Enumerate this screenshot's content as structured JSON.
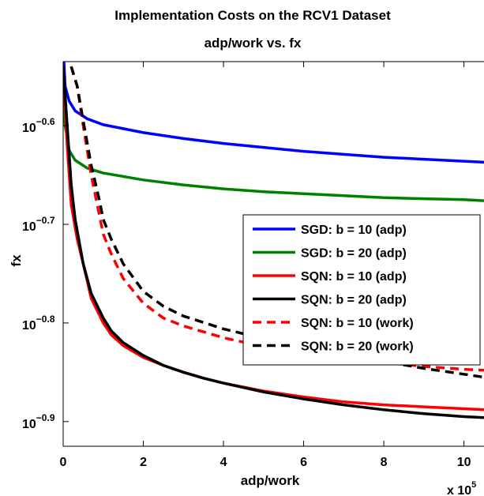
{
  "chart_data": {
    "type": "line",
    "title": "Implementation Costs on the RCV1 Dataset",
    "subtitle": "adp/work vs. fx",
    "xlabel": "adp/work",
    "ylabel": "fx",
    "x_multiplier": "x 10",
    "x_multiplier_exp": "5",
    "xlim": [
      0,
      10.5
    ],
    "ylim": [
      -0.925,
      -0.535
    ],
    "yscale": "log10",
    "x_ticks": [
      "0",
      "2",
      "4",
      "6",
      "8",
      "10"
    ],
    "y_ticks": [
      {
        "value": -0.6,
        "base": "10",
        "exp": "−0.6"
      },
      {
        "value": -0.7,
        "base": "10",
        "exp": "−0.7"
      },
      {
        "value": -0.8,
        "base": "10",
        "exp": "−0.8"
      },
      {
        "value": -0.9,
        "base": "10",
        "exp": "−0.9"
      }
    ],
    "grid": false,
    "legend_position": "center-right",
    "series": [
      {
        "name": "SGD: b = 10 (adp)",
        "color": "#0000ff",
        "dash": "solid",
        "x": [
          0.0,
          0.05,
          0.15,
          0.3,
          0.6,
          1,
          2,
          3,
          4,
          5,
          6,
          7,
          8,
          9,
          10,
          10.5
        ],
        "y": [
          -0.52,
          -0.56,
          -0.575,
          -0.585,
          -0.593,
          -0.599,
          -0.607,
          -0.613,
          -0.618,
          -0.622,
          -0.626,
          -0.629,
          -0.632,
          -0.634,
          -0.636,
          -0.637
        ]
      },
      {
        "name": "SGD: b = 20 (adp)",
        "color": "#008000",
        "dash": "solid",
        "x": [
          0.0,
          0.05,
          0.15,
          0.3,
          0.6,
          1,
          2,
          3,
          4,
          5,
          6,
          7,
          8,
          9,
          10,
          10.5
        ],
        "y": [
          -0.56,
          -0.6,
          -0.625,
          -0.635,
          -0.643,
          -0.648,
          -0.655,
          -0.66,
          -0.664,
          -0.667,
          -0.669,
          -0.671,
          -0.673,
          -0.674,
          -0.675,
          -0.676
        ]
      },
      {
        "name": "SQN: b = 10 (adp)",
        "color": "#ff0000",
        "dash": "solid",
        "x": [
          0.0,
          0.1,
          0.2,
          0.35,
          0.5,
          0.7,
          1,
          1.2,
          1.5,
          2,
          2.5,
          3,
          3.5,
          4,
          5,
          6,
          7,
          8,
          9,
          10,
          10.5
        ],
        "y": [
          -0.54,
          -0.62,
          -0.68,
          -0.715,
          -0.74,
          -0.775,
          -0.8,
          -0.812,
          -0.823,
          -0.835,
          -0.843,
          -0.85,
          -0.856,
          -0.861,
          -0.869,
          -0.875,
          -0.88,
          -0.883,
          -0.885,
          -0.887,
          -0.888
        ]
      },
      {
        "name": "SQN: b = 20 (adp)",
        "color": "#000000",
        "dash": "solid",
        "x": [
          0.0,
          0.1,
          0.2,
          0.3,
          0.5,
          0.7,
          1,
          1.2,
          1.5,
          2,
          2.5,
          3,
          3.5,
          4,
          5,
          6,
          7,
          8,
          9,
          10,
          10.5
        ],
        "y": [
          -0.54,
          -0.6,
          -0.66,
          -0.695,
          -0.74,
          -0.77,
          -0.795,
          -0.808,
          -0.82,
          -0.833,
          -0.843,
          -0.85,
          -0.856,
          -0.861,
          -0.87,
          -0.877,
          -0.883,
          -0.888,
          -0.892,
          -0.895,
          -0.896
        ]
      },
      {
        "name": "SQN: b = 10 (work)",
        "color": "#ff0000",
        "dash": "dashed",
        "x": [
          0.2,
          0.35,
          0.5,
          0.7,
          0.9,
          1.0,
          1.2,
          1.5,
          2,
          2.5,
          3,
          4,
          5,
          6,
          7,
          8,
          9,
          10,
          10.5
        ],
        "y": [
          -0.54,
          -0.56,
          -0.6,
          -0.65,
          -0.69,
          -0.71,
          -0.73,
          -0.755,
          -0.78,
          -0.795,
          -0.803,
          -0.815,
          -0.824,
          -0.83,
          -0.835,
          -0.84,
          -0.844,
          -0.847,
          -0.848
        ]
      },
      {
        "name": "SQN: b = 20 (work)",
        "color": "#000000",
        "dash": "dashed",
        "x": [
          0.2,
          0.35,
          0.5,
          0.7,
          0.9,
          1.0,
          1.2,
          1.5,
          2,
          2.5,
          3,
          4,
          5,
          6,
          7,
          8,
          9,
          10,
          10.5
        ],
        "y": [
          -0.54,
          -0.56,
          -0.595,
          -0.64,
          -0.675,
          -0.695,
          -0.715,
          -0.74,
          -0.768,
          -0.783,
          -0.793,
          -0.806,
          -0.816,
          -0.824,
          -0.831,
          -0.839,
          -0.846,
          -0.852,
          -0.855
        ]
      }
    ]
  }
}
